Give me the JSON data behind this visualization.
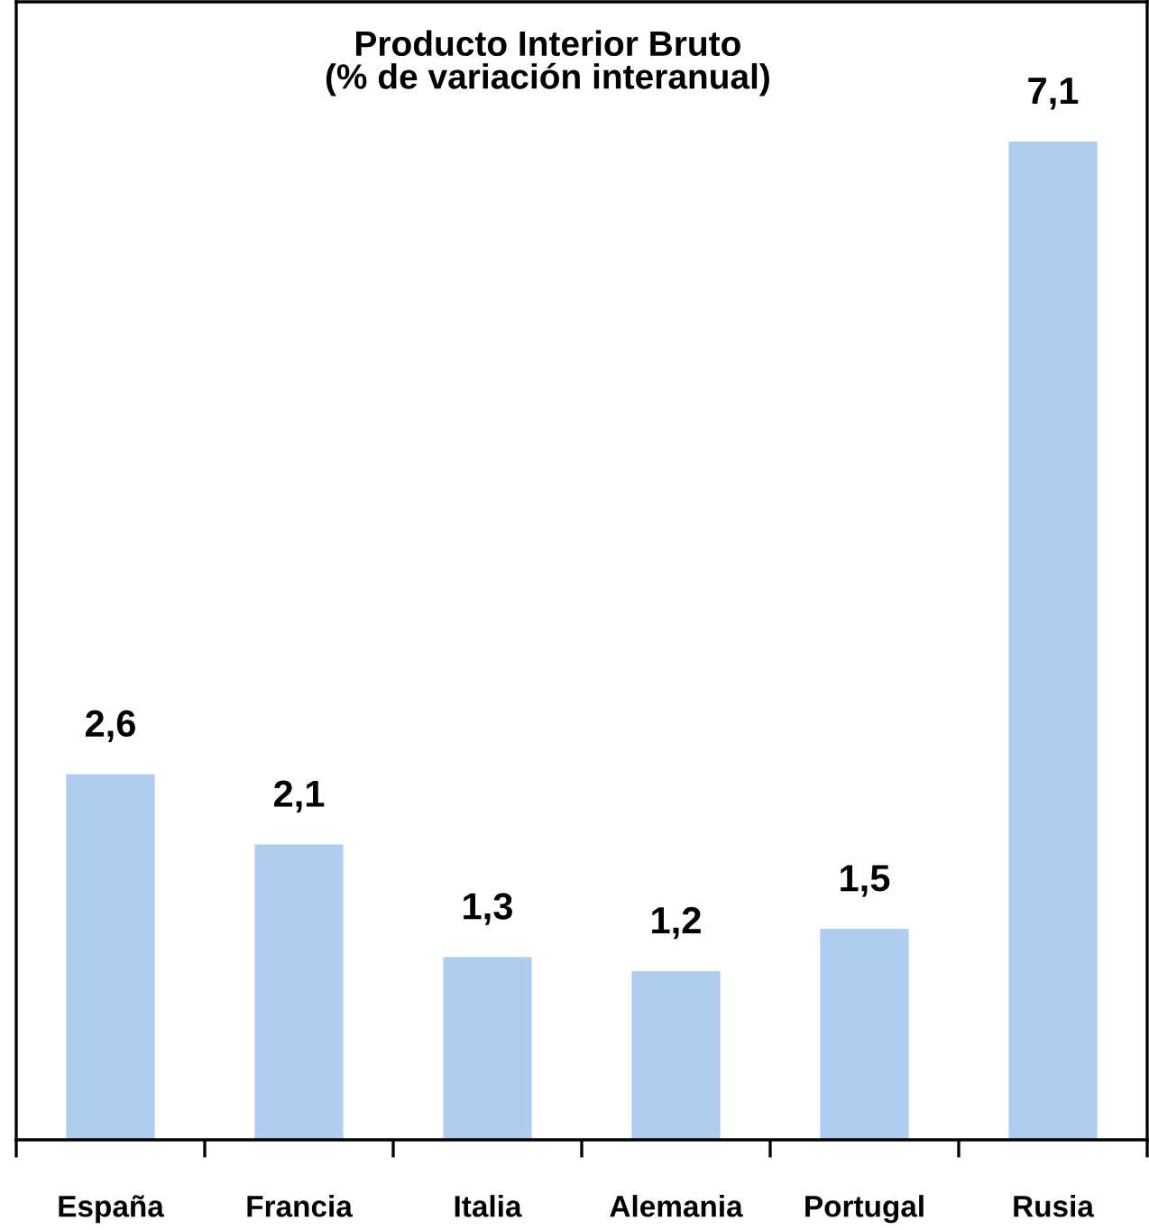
{
  "chart_data": {
    "type": "bar",
    "title": "Producto Interior Bruto\n(% de variación interanual)",
    "categories": [
      "España",
      "Francia",
      "Italia",
      "Alemania",
      "Portugal",
      "Rusia"
    ],
    "values": [
      2.6,
      2.1,
      1.3,
      1.2,
      1.5,
      7.1
    ],
    "value_labels": [
      "2,6",
      "2,1",
      "1,3",
      "1,2",
      "1,5",
      "7,1"
    ],
    "color": "#b0cdf0",
    "grid": false,
    "legend": false
  }
}
